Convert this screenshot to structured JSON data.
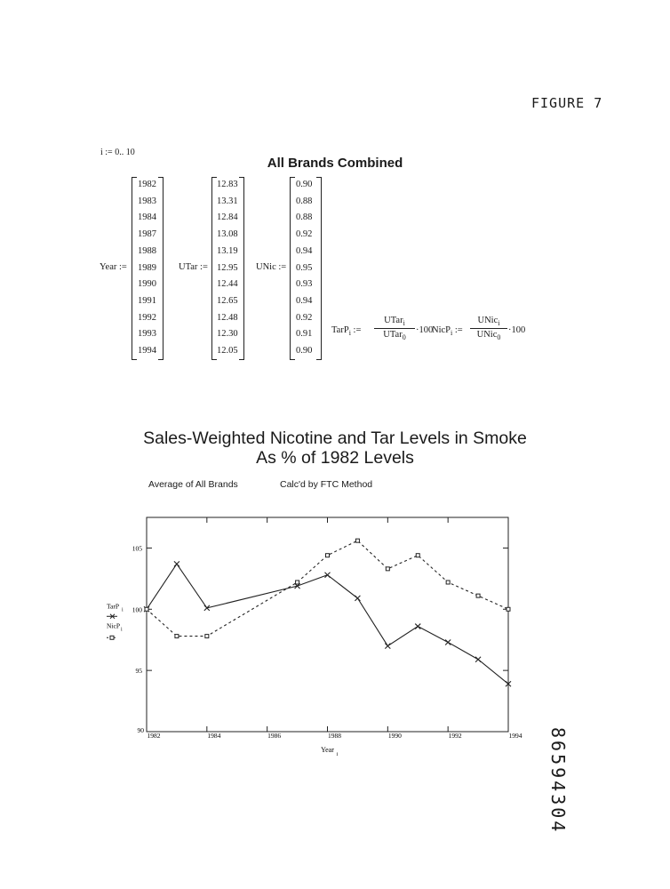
{
  "figure_label": "FIGURE 7",
  "range_definition": "i := 0.. 10",
  "table_title": "All Brands Combined",
  "matrices": {
    "year": {
      "label": "Year :=",
      "values": [
        "1982",
        "1983",
        "1984",
        "1987",
        "1988",
        "1989",
        "1990",
        "1991",
        "1992",
        "1993",
        "1994"
      ]
    },
    "utar": {
      "label": "UTar :=",
      "values": [
        "12.83",
        "13.31",
        "12.84",
        "13.08",
        "13.19",
        "12.95",
        "12.44",
        "12.65",
        "12.48",
        "12.30",
        "12.05"
      ]
    },
    "unic": {
      "label": "UNic :=",
      "values": [
        "0.90",
        "0.88",
        "0.88",
        "0.92",
        "0.94",
        "0.95",
        "0.93",
        "0.94",
        "0.92",
        "0.91",
        "0.90"
      ]
    }
  },
  "formulas": {
    "tar": {
      "lhs": "TarP",
      "sub": "i",
      "assign": ":=",
      "num": "UTar",
      "num_sub": "i",
      "den": "UTar",
      "den_sub": "0",
      "mult": "·100"
    },
    "nic": {
      "lhs": "NicP",
      "sub": "i",
      "assign": ":=",
      "num": "UNic",
      "num_sub": "i",
      "den": "UNic",
      "den_sub": "0",
      "mult": "·100"
    }
  },
  "chart_title_line1": "Sales-Weighted Nicotine and Tar Levels in Smoke",
  "chart_title_line2": "As % of 1982 Levels",
  "chart_subtitle_left": "Average of All Brands",
  "chart_subtitle_right": "Calc'd by FTC Method",
  "document_number": "86594304",
  "chart_data": {
    "type": "line",
    "xlabel": "Year",
    "xlabel_sub": "i",
    "xlim": [
      1982,
      1994
    ],
    "ylim": [
      90,
      107.5
    ],
    "xticks": [
      1982,
      1984,
      1986,
      1988,
      1990,
      1992,
      1994
    ],
    "yticks": [
      90,
      95,
      100,
      105
    ],
    "legend_position": "left",
    "series": [
      {
        "name": "TarP",
        "name_sub": "i",
        "style": "solid",
        "marker": "x",
        "x": [
          1982,
          1983,
          1984,
          1987,
          1988,
          1989,
          1990,
          1991,
          1992,
          1993,
          1994
        ],
        "values": [
          100,
          103.7,
          100.1,
          101.9,
          102.8,
          100.9,
          97.0,
          98.6,
          97.3,
          95.9,
          93.9
        ]
      },
      {
        "name": "NicP",
        "name_sub": "i",
        "style": "dashed",
        "marker": "square",
        "x": [
          1982,
          1983,
          1984,
          1987,
          1988,
          1989,
          1990,
          1991,
          1992,
          1993,
          1994
        ],
        "values": [
          100,
          97.8,
          97.8,
          102.2,
          104.4,
          105.6,
          103.3,
          104.4,
          102.2,
          101.1,
          100
        ]
      }
    ]
  }
}
